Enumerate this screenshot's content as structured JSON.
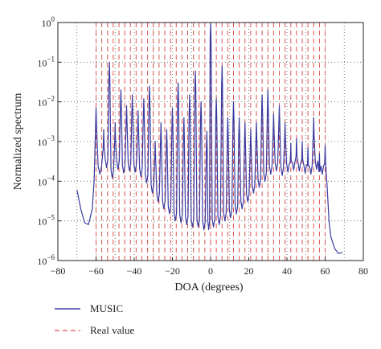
{
  "chart_data": {
    "type": "line",
    "xlabel": "DOA (degrees)",
    "ylabel": "Normalized spectrum",
    "xlim": [
      -80,
      80
    ],
    "ylim": [
      1e-06,
      1
    ],
    "yscale": "log",
    "grid": "dotted",
    "legend_position": "bottom-left",
    "x_ticks": [
      -80,
      -60,
      -40,
      -20,
      0,
      20,
      40,
      60,
      80
    ],
    "x_tick_labels": [
      "−80",
      "−60",
      "−40",
      "−20",
      "0",
      "20",
      "40",
      "60",
      "80"
    ],
    "y_ticks": [
      {
        "exp": 0,
        "label_base": "10",
        "label_exp": "0"
      },
      {
        "exp": -1,
        "label_base": "10",
        "label_exp": "−1"
      },
      {
        "exp": -2,
        "label_base": "10",
        "label_exp": "−2"
      },
      {
        "exp": -3,
        "label_base": "10",
        "label_exp": "−3"
      },
      {
        "exp": -4,
        "label_base": "10",
        "label_exp": "−4"
      },
      {
        "exp": -5,
        "label_base": "10",
        "label_exp": "−5"
      },
      {
        "exp": -6,
        "label_base": "10",
        "label_exp": "−6"
      }
    ],
    "series": [
      {
        "name": "MUSIC",
        "color": "#3a3aa0",
        "style": "solid",
        "peaks": [
          {
            "x": -60,
            "y": 0.007
          },
          {
            "x": -56,
            "y": 0.002
          },
          {
            "x": -53,
            "y": 0.1
          },
          {
            "x": -50,
            "y": 0.003
          },
          {
            "x": -47,
            "y": 0.02
          },
          {
            "x": -44,
            "y": 0.008
          },
          {
            "x": -41,
            "y": 0.015
          },
          {
            "x": -38,
            "y": 0.006
          },
          {
            "x": -35,
            "y": 0.012
          },
          {
            "x": -32,
            "y": 0.025
          },
          {
            "x": -29,
            "y": 0.001
          },
          {
            "x": -26,
            "y": 0.003
          },
          {
            "x": -23,
            "y": 0.002
          },
          {
            "x": -20,
            "y": 0.007
          },
          {
            "x": -17,
            "y": 0.03
          },
          {
            "x": -14,
            "y": 0.004
          },
          {
            "x": -11,
            "y": 0.015
          },
          {
            "x": -8,
            "y": 0.06
          },
          {
            "x": -5,
            "y": 0.01
          },
          {
            "x": -2,
            "y": 0.0018
          },
          {
            "x": 0,
            "y": 1.0
          },
          {
            "x": 3,
            "y": 0.012
          },
          {
            "x": 6,
            "y": 0.08
          },
          {
            "x": 9,
            "y": 0.004
          },
          {
            "x": 12,
            "y": 0.01
          },
          {
            "x": 15,
            "y": 0.004
          },
          {
            "x": 18,
            "y": 0.003
          },
          {
            "x": 21,
            "y": 0.002
          },
          {
            "x": 24,
            "y": 0.003
          },
          {
            "x": 27,
            "y": 0.015
          },
          {
            "x": 30,
            "y": 0.02
          },
          {
            "x": 33,
            "y": 0.005
          },
          {
            "x": 36,
            "y": 0.008
          },
          {
            "x": 39,
            "y": 0.003
          },
          {
            "x": 42,
            "y": 0.0009
          },
          {
            "x": 45,
            "y": 0.0012
          },
          {
            "x": 48,
            "y": 0.001
          },
          {
            "x": 51,
            "y": 0.0007
          },
          {
            "x": 54,
            "y": 0.004
          },
          {
            "x": 57,
            "y": 0.0005
          },
          {
            "x": 60,
            "y": 0.0008
          }
        ],
        "valleys_between_peaks": [
          0.00015,
          0.00022,
          0.00012,
          0.0002,
          0.00016,
          0.00018,
          0.00017,
          0.00013,
          9e-05,
          5e-05,
          3e-05,
          2e-05,
          1.5e-05,
          1e-05,
          9e-06,
          8e-06,
          7e-06,
          7e-06,
          6e-06,
          6e-06,
          7e-06,
          8e-06,
          1e-05,
          1.2e-05,
          1.5e-05,
          2e-05,
          3e-05,
          5e-05,
          7e-05,
          0.0001,
          0.00015,
          0.00018,
          0.00014,
          0.00017,
          0.00019,
          0.00018,
          0.00016,
          0.00015,
          0.0002,
          0.00015
        ],
        "left_tail": [
          {
            "x": -70,
            "y": 6e-05
          },
          {
            "x": -68,
            "y": 2e-05
          },
          {
            "x": -66,
            "y": 9e-06
          },
          {
            "x": -64,
            "y": 8e-06
          },
          {
            "x": -62,
            "y": 2e-05
          },
          {
            "x": -61,
            "y": 0.0001
          }
        ],
        "right_tail": [
          {
            "x": 61,
            "y": 8e-05
          },
          {
            "x": 62,
            "y": 1e-05
          },
          {
            "x": 63,
            "y": 4e-06
          },
          {
            "x": 65,
            "y": 2e-06
          },
          {
            "x": 67,
            "y": 1.5e-06
          },
          {
            "x": 69,
            "y": 1.6e-06
          }
        ]
      },
      {
        "name": "Real value",
        "color": "#d9534f",
        "style": "dashed",
        "x": [
          -60,
          -57,
          -54,
          -51,
          -48,
          -45,
          -42,
          -39,
          -36,
          -33,
          -30,
          -27,
          -24,
          -21,
          -18,
          -15,
          -12,
          -9,
          -6,
          -3,
          0,
          3,
          6,
          9,
          12,
          15,
          18,
          21,
          24,
          27,
          30,
          33,
          36,
          39,
          42,
          45,
          48,
          51,
          54,
          57,
          60
        ]
      }
    ]
  }
}
